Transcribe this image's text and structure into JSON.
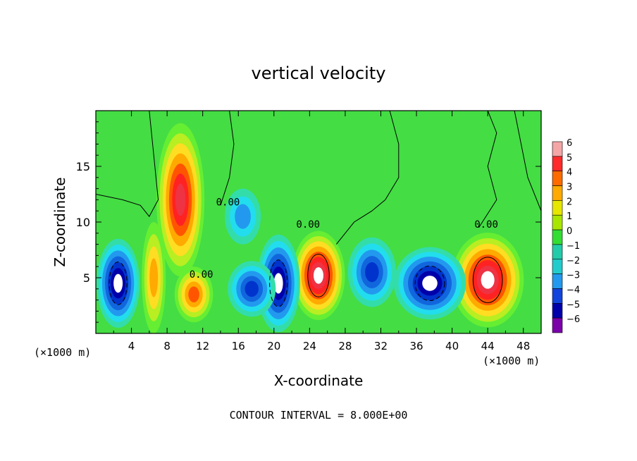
{
  "chart_data": {
    "type": "heatmap",
    "title": "vertical velocity",
    "xlabel": "X-coordinate",
    "ylabel": "Z-coordinate",
    "x_unit_left": "(×1000 m)",
    "x_unit_right": "(×1000 m)",
    "xlim": [
      0,
      50
    ],
    "ylim": [
      0,
      20
    ],
    "x_ticks": [
      4,
      8,
      12,
      16,
      20,
      24,
      28,
      32,
      36,
      40,
      44,
      48
    ],
    "y_ticks": [
      5,
      10,
      15
    ],
    "colorbar": {
      "labels": [
        "6",
        "5",
        "4",
        "3",
        "2",
        "1",
        "0",
        "−1",
        "−2",
        "−3",
        "−4",
        "−5",
        "−6"
      ],
      "colors": [
        "#f4a6a6",
        "#ff2a2a",
        "#ff6a00",
        "#ffaa00",
        "#e6e600",
        "#a8e600",
        "#33dd33",
        "#22ccaa",
        "#22cccc",
        "#2299ee",
        "#1144dd",
        "#0000aa",
        "#7a00aa"
      ]
    },
    "contour_labels": [
      "0.00",
      "0.00",
      "0.00",
      "0.00"
    ],
    "footer": "CONTOUR INTERVAL = 8.000E+00",
    "features": [
      {
        "sign": "up",
        "x": 9.5,
        "z": 12.0,
        "rx": 2.0,
        "rz": 5.5,
        "amp": 6.8
      },
      {
        "sign": "up",
        "x": 6.5,
        "z": 5.0,
        "rx": 1.0,
        "rz": 4.0,
        "amp": 4.0
      },
      {
        "sign": "up",
        "x": 11.0,
        "z": 3.5,
        "rx": 1.6,
        "rz": 2.0,
        "amp": 5.0
      },
      {
        "sign": "up",
        "x": 25.0,
        "z": 5.2,
        "rx": 2.2,
        "rz": 3.2,
        "amp": 7.5
      },
      {
        "sign": "up",
        "x": 44.0,
        "z": 4.8,
        "rx": 3.0,
        "rz": 3.4,
        "amp": 8.5
      },
      {
        "sign": "down",
        "x": 2.5,
        "z": 4.5,
        "rx": 1.8,
        "rz": 3.2,
        "amp": 7.5
      },
      {
        "sign": "down",
        "x": 20.5,
        "z": 4.5,
        "rx": 1.8,
        "rz": 3.5,
        "amp": 7.5
      },
      {
        "sign": "down",
        "x": 37.5,
        "z": 4.5,
        "rx": 3.0,
        "rz": 2.6,
        "amp": 7.5
      },
      {
        "sign": "down",
        "x": 17.5,
        "z": 4.0,
        "rx": 2.0,
        "rz": 2.0,
        "amp": 4.5
      },
      {
        "sign": "down",
        "x": 31.0,
        "z": 5.5,
        "rx": 2.0,
        "rz": 2.5,
        "amp": 5.0
      },
      {
        "sign": "down",
        "x": 16.5,
        "z": 10.5,
        "rx": 1.5,
        "rz": 2.0,
        "amp": 2.5
      }
    ]
  }
}
